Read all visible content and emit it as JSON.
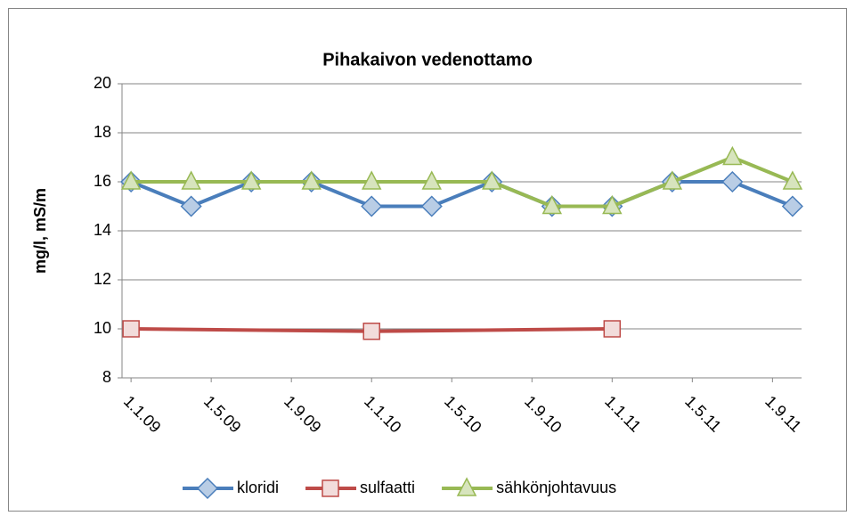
{
  "chart_data": {
    "type": "line",
    "title": "Pihakaivon vedenottamo",
    "y_label": "mg/l, mS/m",
    "xlim": [
      -0.45,
      33.45
    ],
    "xticks": [
      {
        "value": 0,
        "label": "1.1.09"
      },
      {
        "value": 4,
        "label": "1.5.09"
      },
      {
        "value": 8,
        "label": "1.9.09"
      },
      {
        "value": 12,
        "label": "1.1.10"
      },
      {
        "value": 16,
        "label": "1.5.10"
      },
      {
        "value": 20,
        "label": "1.9.10"
      },
      {
        "value": 24,
        "label": "1.1.11"
      },
      {
        "value": 28,
        "label": "1.5.11"
      },
      {
        "value": 32,
        "label": "1.9.11"
      }
    ],
    "ylim": [
      8,
      20
    ],
    "yticks": [
      8,
      10,
      12,
      14,
      16,
      18,
      20
    ],
    "grid": true,
    "legend": "bottom",
    "series": [
      {
        "name": "kloridi",
        "color": "#4a7ebb",
        "marker_fill": "#b9cde5",
        "marker": "diamond",
        "x": [
          0,
          3,
          6,
          9,
          12,
          15,
          18,
          21,
          24,
          27,
          30,
          33
        ],
        "values": [
          16,
          15,
          16,
          16,
          15,
          15,
          16,
          15,
          15,
          16,
          16,
          15
        ]
      },
      {
        "name": "sulfaatti",
        "color": "#be4b48",
        "marker_fill": "#f2dcdb",
        "marker": "square",
        "x": [
          0,
          12,
          24
        ],
        "values": [
          10,
          9.9,
          10
        ]
      },
      {
        "name": "sähkönjohtavuus",
        "color": "#98b954",
        "marker_fill": "#d7e4bd",
        "marker": "triangle",
        "x": [
          0,
          3,
          6,
          9,
          12,
          15,
          18,
          21,
          24,
          27,
          30,
          33
        ],
        "values": [
          16,
          16,
          16,
          16,
          16,
          16,
          16,
          15,
          15,
          16,
          17,
          16
        ]
      }
    ]
  }
}
